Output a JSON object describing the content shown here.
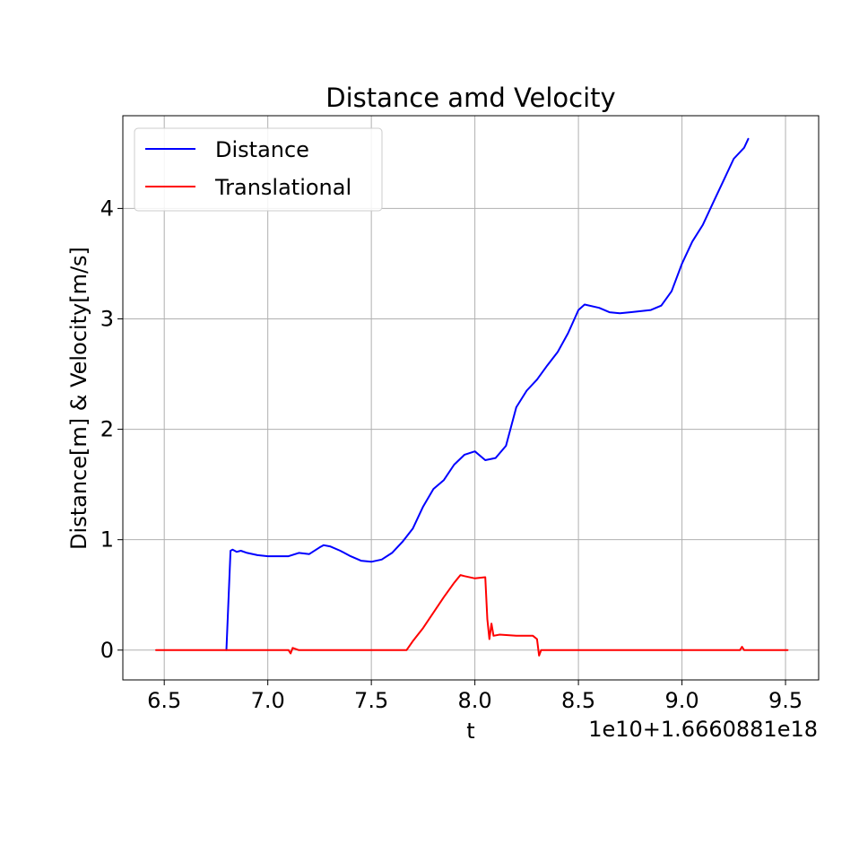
{
  "chart_data": {
    "type": "line",
    "title": "Distance amd Velocity",
    "xlabel": "t",
    "ylabel": "Distance[m] & Velocity[m/s]",
    "x_offset_label": "1e10+1.6660881e18",
    "xlim": [
      6.3,
      9.66
    ],
    "ylim": [
      -0.27,
      4.84
    ],
    "xticks": [
      6.5,
      7.0,
      7.5,
      8.0,
      8.5,
      9.0,
      9.5
    ],
    "xtick_labels": [
      "6.5",
      "7.0",
      "7.5",
      "8.0",
      "8.5",
      "9.0",
      "9.5"
    ],
    "yticks": [
      0,
      1,
      2,
      3,
      4
    ],
    "ytick_labels": [
      "0",
      "1",
      "2",
      "3",
      "4"
    ],
    "grid": true,
    "legend_position": "upper-left",
    "series": [
      {
        "name": "Distance",
        "color": "#0000ff",
        "points": [
          [
            6.8,
            0.0
          ],
          [
            6.8,
            0.0
          ],
          [
            6.82,
            0.9
          ],
          [
            6.83,
            0.91
          ],
          [
            6.85,
            0.89
          ],
          [
            6.87,
            0.9
          ],
          [
            6.9,
            0.88
          ],
          [
            6.95,
            0.86
          ],
          [
            7.0,
            0.85
          ],
          [
            7.05,
            0.85
          ],
          [
            7.1,
            0.85
          ],
          [
            7.15,
            0.88
          ],
          [
            7.2,
            0.87
          ],
          [
            7.25,
            0.93
          ],
          [
            7.27,
            0.95
          ],
          [
            7.3,
            0.94
          ],
          [
            7.35,
            0.9
          ],
          [
            7.4,
            0.85
          ],
          [
            7.45,
            0.81
          ],
          [
            7.5,
            0.8
          ],
          [
            7.55,
            0.82
          ],
          [
            7.6,
            0.88
          ],
          [
            7.65,
            0.98
          ],
          [
            7.7,
            1.1
          ],
          [
            7.75,
            1.3
          ],
          [
            7.8,
            1.46
          ],
          [
            7.85,
            1.54
          ],
          [
            7.9,
            1.68
          ],
          [
            7.95,
            1.77
          ],
          [
            8.0,
            1.8
          ],
          [
            8.05,
            1.72
          ],
          [
            8.1,
            1.74
          ],
          [
            8.15,
            1.85
          ],
          [
            8.2,
            2.2
          ],
          [
            8.25,
            2.35
          ],
          [
            8.3,
            2.45
          ],
          [
            8.35,
            2.58
          ],
          [
            8.4,
            2.7
          ],
          [
            8.45,
            2.87
          ],
          [
            8.5,
            3.08
          ],
          [
            8.53,
            3.13
          ],
          [
            8.6,
            3.1
          ],
          [
            8.65,
            3.06
          ],
          [
            8.7,
            3.05
          ],
          [
            8.75,
            3.06
          ],
          [
            8.8,
            3.07
          ],
          [
            8.85,
            3.08
          ],
          [
            8.9,
            3.12
          ],
          [
            8.95,
            3.25
          ],
          [
            9.0,
            3.5
          ],
          [
            9.05,
            3.7
          ],
          [
            9.1,
            3.85
          ],
          [
            9.15,
            4.05
          ],
          [
            9.2,
            4.25
          ],
          [
            9.25,
            4.45
          ],
          [
            9.3,
            4.55
          ],
          [
            9.32,
            4.63
          ]
        ]
      },
      {
        "name": "Translational",
        "color": "#ff0000",
        "points": [
          [
            6.46,
            0.0
          ],
          [
            6.8,
            0.0
          ],
          [
            7.1,
            0.0
          ],
          [
            7.11,
            -0.03
          ],
          [
            7.12,
            0.02
          ],
          [
            7.15,
            0.0
          ],
          [
            7.3,
            0.0
          ],
          [
            7.5,
            0.0
          ],
          [
            7.67,
            0.0
          ],
          [
            7.7,
            0.08
          ],
          [
            7.75,
            0.2
          ],
          [
            7.8,
            0.34
          ],
          [
            7.85,
            0.48
          ],
          [
            7.9,
            0.61
          ],
          [
            7.93,
            0.68
          ],
          [
            7.95,
            0.67
          ],
          [
            8.0,
            0.65
          ],
          [
            8.05,
            0.66
          ],
          [
            8.06,
            0.28
          ],
          [
            8.07,
            0.1
          ],
          [
            8.08,
            0.24
          ],
          [
            8.09,
            0.13
          ],
          [
            8.12,
            0.14
          ],
          [
            8.2,
            0.13
          ],
          [
            8.28,
            0.13
          ],
          [
            8.3,
            0.1
          ],
          [
            8.31,
            -0.05
          ],
          [
            8.32,
            0.0
          ],
          [
            8.6,
            0.0
          ],
          [
            8.9,
            0.0
          ],
          [
            9.28,
            0.0
          ],
          [
            9.29,
            0.03
          ],
          [
            9.3,
            0.0
          ],
          [
            9.51,
            0.0
          ]
        ]
      }
    ]
  }
}
